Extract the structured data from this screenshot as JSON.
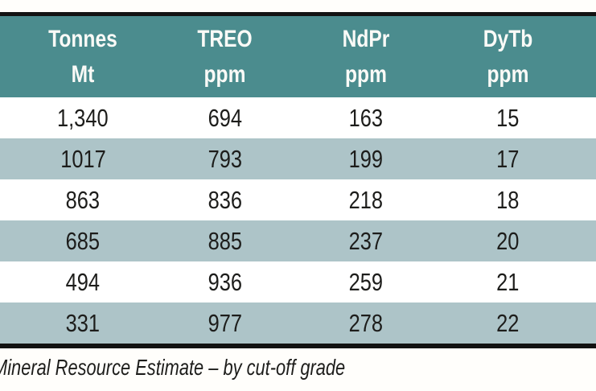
{
  "caption": "Mineral Resource Estimate – by cut-off grade",
  "table": {
    "columns": [
      {
        "line1": "Tonnes",
        "line2": "Mt"
      },
      {
        "line1": "TREO",
        "line2": "ppm"
      },
      {
        "line1": "NdPr",
        "line2": "ppm"
      },
      {
        "line1": "DyTb",
        "line2": "ppm"
      }
    ],
    "rows": [
      [
        "1,340",
        "694",
        "163",
        "15"
      ],
      [
        "1017",
        "793",
        "199",
        "17"
      ],
      [
        "863",
        "836",
        "218",
        "18"
      ],
      [
        "685",
        "885",
        "237",
        "20"
      ],
      [
        "494",
        "936",
        "259",
        "21"
      ],
      [
        "331",
        "977",
        "278",
        "22"
      ]
    ]
  },
  "chart_data": {
    "type": "table",
    "title": "Mineral Resource Estimate – by cut-off grade",
    "columns": [
      "Tonnes Mt",
      "TREO ppm",
      "NdPr ppm",
      "DyTb ppm"
    ],
    "rows": [
      [
        "1,340",
        "694",
        "163",
        "15"
      ],
      [
        "1017",
        "793",
        "199",
        "17"
      ],
      [
        "863",
        "836",
        "218",
        "18"
      ],
      [
        "685",
        "885",
        "237",
        "20"
      ],
      [
        "494",
        "936",
        "259",
        "21"
      ],
      [
        "331",
        "977",
        "278",
        "22"
      ]
    ]
  },
  "colors": {
    "header_bg": "#4b8c8e",
    "header_text": "#fafaf7",
    "row_alt_bg": "#adc4c8",
    "rule": "#121212",
    "text": "#1d1d1b",
    "page_bg": "#fffefb"
  }
}
